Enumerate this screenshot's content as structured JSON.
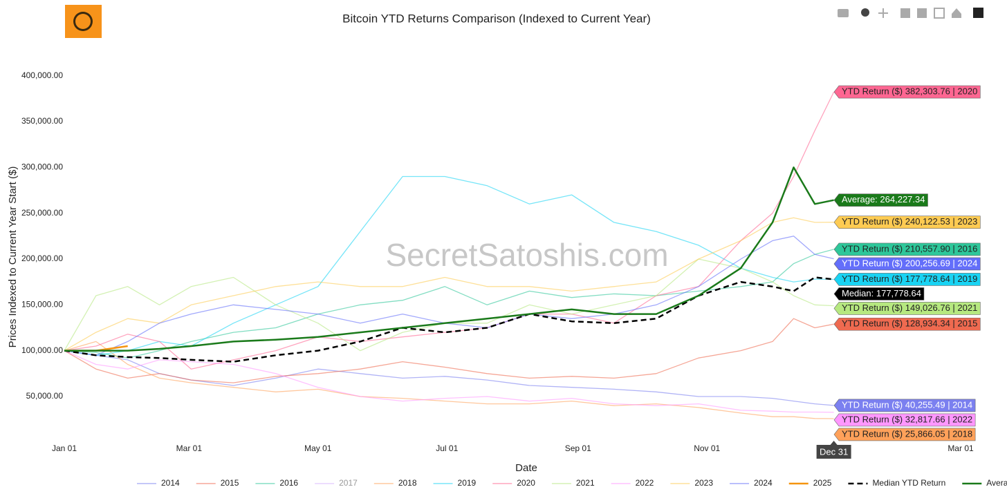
{
  "chart_data": {
    "type": "line",
    "title": "Bitcoin YTD Returns Comparison (Indexed to Current Year)",
    "x_label": "Date",
    "y_label": "Prices Indexed to Current Year Start ($)",
    "watermark": "SecretSatoshis.com",
    "x_hover_label": "Dec 31",
    "x": [
      0,
      15,
      30,
      45,
      60,
      80,
      100,
      120,
      140,
      160,
      180,
      200,
      220,
      240,
      260,
      280,
      300,
      320,
      335,
      345,
      355,
      364
    ],
    "xlim": [
      0,
      424
    ],
    "xticks": [
      {
        "value": 0,
        "label": "Jan 01"
      },
      {
        "value": 59,
        "label": "Mar 01"
      },
      {
        "value": 120,
        "label": "May 01"
      },
      {
        "value": 181,
        "label": "Jul 01"
      },
      {
        "value": 243,
        "label": "Sep 01"
      },
      {
        "value": 304,
        "label": "Nov 01"
      },
      {
        "value": 424,
        "label": "Mar 01"
      }
    ],
    "ylim": [
      4000,
      411000
    ],
    "yticks": [
      {
        "value": 50000,
        "label": "50,000.00"
      },
      {
        "value": 100000,
        "label": "100,000.00"
      },
      {
        "value": 150000,
        "label": "150,000.00"
      },
      {
        "value": 200000,
        "label": "200,000.00"
      },
      {
        "value": 250000,
        "label": "250,000.00"
      },
      {
        "value": 300000,
        "label": "300,000.00"
      },
      {
        "value": 350000,
        "label": "350,000.00"
      },
      {
        "value": 400000,
        "label": "400,000.00"
      }
    ],
    "grid": false,
    "legend_position": "bottom",
    "series": [
      {
        "name": "2014",
        "color": "#7b80f0",
        "values": [
          100000,
          95000,
          90000,
          75000,
          68000,
          62000,
          70000,
          80000,
          75000,
          70000,
          72000,
          68000,
          62000,
          60000,
          58000,
          55000,
          50000,
          50000,
          48000,
          45000,
          42000,
          40255.49
        ],
        "end_label": "YTD Return ($) 40,255.49 | 2014",
        "label_text_color": "#ffffff"
      },
      {
        "name": "2015",
        "color": "#ef6a50",
        "values": [
          100000,
          80000,
          70000,
          75000,
          68000,
          65000,
          72000,
          75000,
          80000,
          88000,
          82000,
          75000,
          70000,
          72000,
          70000,
          75000,
          92000,
          100000,
          110000,
          135000,
          125000,
          128934.34
        ],
        "end_label": "YTD Return ($) 128,934.34 | 2015",
        "label_text_color": "#222222"
      },
      {
        "name": "2016",
        "color": "#2ec79a",
        "values": [
          100000,
          98000,
          92000,
          100000,
          110000,
          120000,
          125000,
          140000,
          150000,
          155000,
          170000,
          150000,
          165000,
          158000,
          162000,
          160000,
          165000,
          170000,
          175000,
          195000,
          205000,
          210557.9
        ],
        "end_label": "YTD Return ($) 210,557.90 | 2016",
        "label_text_color": "#222222"
      },
      {
        "name": "2018",
        "color": "#ffa15a",
        "values": [
          100000,
          110000,
          85000,
          70000,
          65000,
          60000,
          55000,
          58000,
          50000,
          48000,
          45000,
          42000,
          42000,
          45000,
          40000,
          42000,
          38000,
          32000,
          28000,
          28000,
          26000,
          25866.05
        ],
        "end_label": "YTD Return ($) 25,866.05 | 2018",
        "label_text_color": "#222222"
      },
      {
        "name": "2019",
        "color": "#19d3f3",
        "values": [
          100000,
          95000,
          100000,
          110000,
          105000,
          130000,
          150000,
          170000,
          230000,
          290000,
          290000,
          280000,
          260000,
          270000,
          240000,
          230000,
          215000,
          190000,
          180000,
          175000,
          178000,
          177778.64
        ],
        "end_label": "YTD Return ($) 177,778.64 | 2019",
        "label_text_color": "#222222"
      },
      {
        "name": "2020",
        "color": "#ff6692",
        "values": [
          100000,
          105000,
          118000,
          110000,
          80000,
          90000,
          100000,
          115000,
          110000,
          115000,
          120000,
          125000,
          140000,
          140000,
          130000,
          160000,
          170000,
          220000,
          250000,
          290000,
          340000,
          382303.76
        ],
        "end_label": "YTD Return ($) 382,303.76 | 2020",
        "label_text_color": "#222222"
      },
      {
        "name": "2021",
        "color": "#b6e880",
        "values": [
          100000,
          160000,
          170000,
          150000,
          170000,
          180000,
          150000,
          130000,
          100000,
          120000,
          130000,
          130000,
          150000,
          140000,
          150000,
          160000,
          200000,
          190000,
          175000,
          160000,
          150000,
          149026.76
        ],
        "end_label": "YTD Return ($) 149,026.76 | 2021",
        "label_text_color": "#222222"
      },
      {
        "name": "2022",
        "color": "#ff97ff",
        "values": [
          100000,
          85000,
          80000,
          90000,
          88000,
          85000,
          75000,
          60000,
          50000,
          45000,
          48000,
          50000,
          45000,
          48000,
          42000,
          40000,
          42000,
          35000,
          34000,
          33000,
          33000,
          32817.66
        ],
        "end_label": "YTD Return ($) 32,817.66 | 2022",
        "label_text_color": "#222222"
      },
      {
        "name": "2023",
        "color": "#fecb52",
        "values": [
          100000,
          120000,
          135000,
          130000,
          150000,
          160000,
          170000,
          175000,
          170000,
          170000,
          180000,
          170000,
          170000,
          165000,
          170000,
          175000,
          200000,
          220000,
          240000,
          245000,
          240000,
          240122.53
        ],
        "end_label": "YTD Return ($) 240,122.53 | 2023",
        "label_text_color": "#222222"
      },
      {
        "name": "2024",
        "color": "#636efa",
        "values": [
          100000,
          95000,
          110000,
          130000,
          140000,
          150000,
          145000,
          140000,
          130000,
          140000,
          130000,
          125000,
          140000,
          135000,
          140000,
          150000,
          170000,
          200000,
          220000,
          225000,
          205000,
          200256.69
        ],
        "end_label": "YTD Return ($) 200,256.69 | 2024",
        "label_text_color": "#ffffff"
      },
      {
        "name": "2025",
        "color": "#f5940f",
        "values": [
          100000,
          100000,
          105000,
          null,
          null,
          null,
          null,
          null,
          null,
          null,
          null,
          null,
          null,
          null,
          null,
          null,
          null,
          null,
          null,
          null,
          null,
          null
        ]
      },
      {
        "name": "Median YTD Return",
        "color": "#000000",
        "dash": true,
        "values": [
          100000,
          95000,
          93000,
          92000,
          90000,
          88000,
          95000,
          100000,
          110000,
          125000,
          120000,
          125000,
          140000,
          132000,
          130000,
          135000,
          160000,
          175000,
          170000,
          165000,
          180000,
          177778.64
        ],
        "end_label": "Median: 177,778.64",
        "label_text_color": "#ffffff"
      },
      {
        "name": "Average YTD Return",
        "color": "#1a7a1a",
        "values": [
          100000,
          100000,
          100000,
          102000,
          105000,
          110000,
          112000,
          115000,
          120000,
          125000,
          130000,
          135000,
          140000,
          145000,
          140000,
          140000,
          160000,
          190000,
          240000,
          300000,
          260000,
          264227.34
        ],
        "end_label": "Average: 264,227.34",
        "label_text_color": "#ffffff"
      }
    ],
    "hidden_series": [
      {
        "name": "2017",
        "color": "#ab63fa"
      }
    ]
  }
}
